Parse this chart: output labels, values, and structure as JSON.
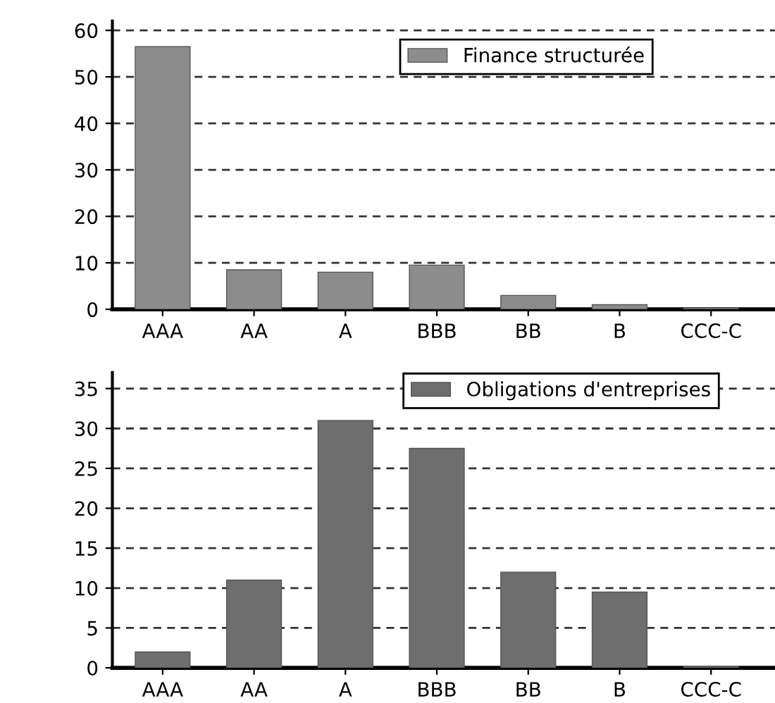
{
  "chart_data": [
    {
      "type": "bar",
      "categories": [
        "AAA",
        "AA",
        "A",
        "BBB",
        "BB",
        "B",
        "CCC-C"
      ],
      "series": [
        {
          "name": "Finance structurée",
          "color": "#8c8c8c",
          "values": [
            56.5,
            8.5,
            8,
            9.5,
            3,
            1,
            0.3
          ]
        }
      ],
      "ylim": [
        0,
        62
      ],
      "yticks": [
        0,
        10,
        20,
        30,
        40,
        50,
        60
      ],
      "grid": "y",
      "legend": "top right"
    },
    {
      "type": "bar",
      "categories": [
        "AAA",
        "AA",
        "A",
        "BBB",
        "BB",
        "B",
        "CCC-C"
      ],
      "series": [
        {
          "name": "Obligations d'entreprises",
          "color": "#6e6e6e",
          "values": [
            2,
            11,
            31,
            27.5,
            12,
            9.5,
            0.2
          ]
        }
      ],
      "ylim": [
        0,
        37
      ],
      "yticks": [
        0,
        5,
        10,
        15,
        20,
        25,
        30,
        35
      ],
      "grid": "y",
      "legend": "top right"
    }
  ]
}
